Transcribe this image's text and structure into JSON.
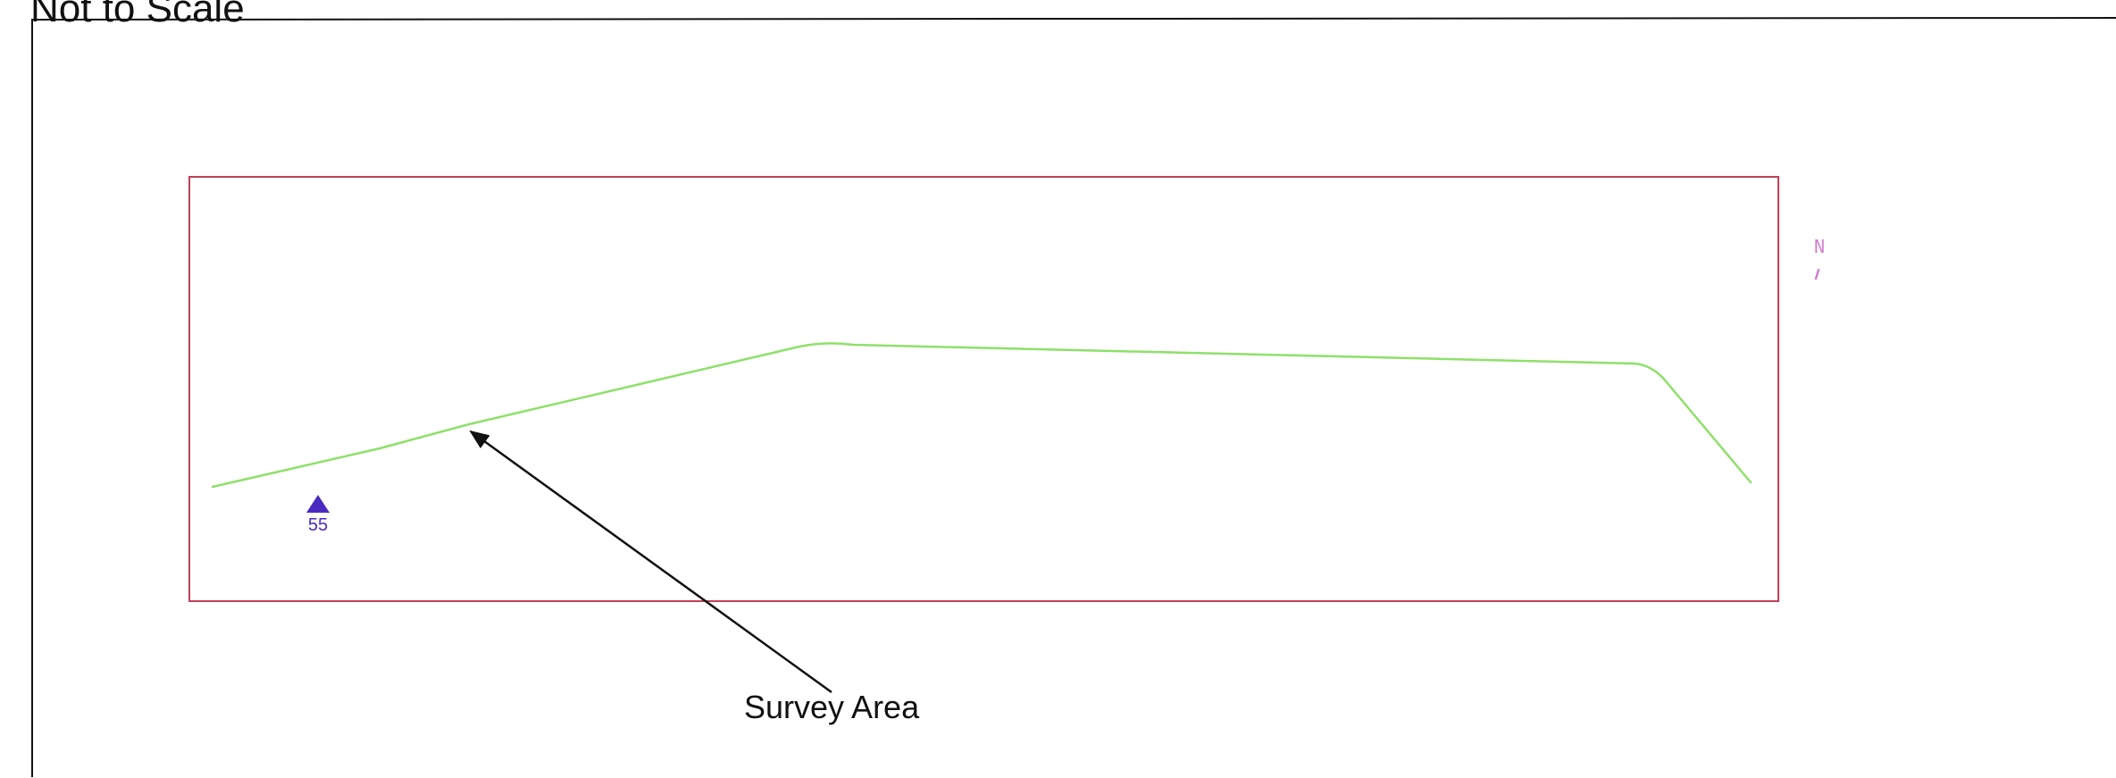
{
  "header": {
    "title": "Not to Scale"
  },
  "map": {
    "survey_callout_label": "Survey Area",
    "marker": {
      "label": "55",
      "color": "#4a2bbf"
    },
    "north_label": "N",
    "colors": {
      "frame": "#111111",
      "survey_boundary": "#c2405a",
      "survey_route": "#8ee06a",
      "callout_arrow": "#111111",
      "north_arrow": "#d07fd0"
    }
  }
}
